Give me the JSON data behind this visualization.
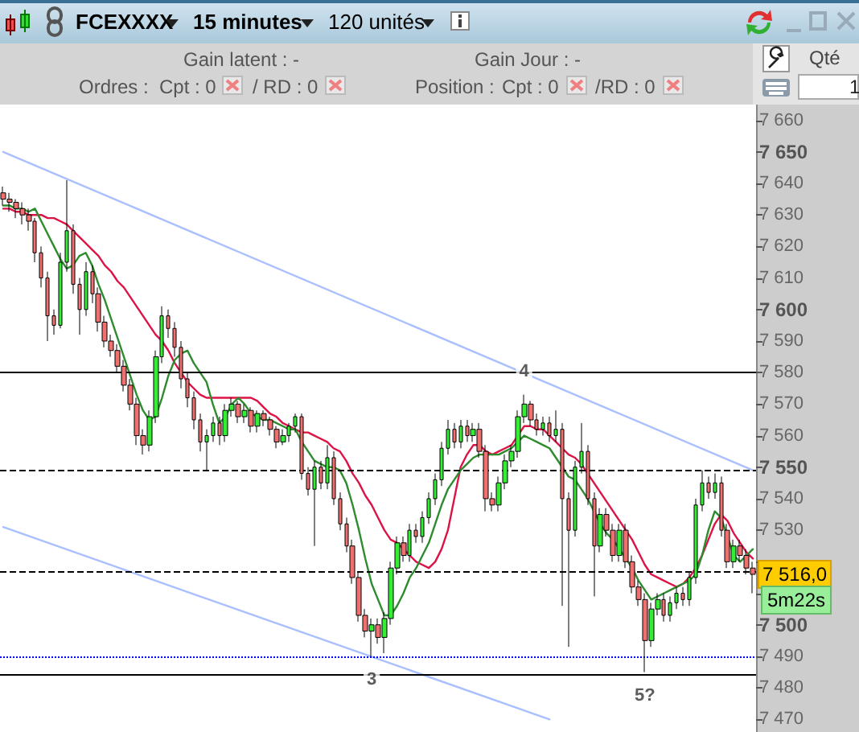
{
  "chart_data": {
    "type": "candlestick",
    "categories": [
      null,
      null,
      null,
      null,
      null,
      null,
      null,
      null,
      null,
      null,
      null,
      null,
      null,
      null,
      null,
      null,
      null,
      null,
      null,
      null,
      null,
      null,
      null,
      null,
      null,
      null,
      null,
      null,
      null,
      null,
      null,
      null,
      null,
      null,
      null,
      null,
      null,
      null,
      null,
      null,
      null,
      null,
      null,
      null,
      null,
      null,
      null,
      null,
      null,
      null,
      null,
      null,
      null,
      null,
      null,
      null,
      null,
      null,
      null,
      null,
      null,
      null,
      null,
      null,
      null,
      null,
      null,
      null,
      null,
      null,
      null,
      null,
      null,
      null,
      null,
      null,
      null,
      null,
      null,
      null,
      null,
      null,
      null,
      null,
      null,
      null,
      null,
      null,
      null,
      null,
      null,
      null,
      null,
      null,
      null,
      null,
      null,
      null,
      null,
      null,
      null,
      null,
      null,
      null,
      null,
      null,
      null,
      null,
      null,
      null,
      null,
      null,
      null,
      null,
      null,
      null,
      null,
      null,
      null
    ],
    "ohlc": [
      [
        7637,
        7639,
        7633,
        7635
      ],
      [
        7635,
        7637,
        7631,
        7634
      ],
      [
        7634,
        7635,
        7629,
        7632
      ],
      [
        7632,
        7634,
        7627,
        7630
      ],
      [
        7630,
        7632,
        7625,
        7628
      ],
      [
        7628,
        7629,
        7615,
        7618
      ],
      [
        7618,
        7620,
        7607,
        7610
      ],
      [
        7610,
        7612,
        7590,
        7598
      ],
      [
        7598,
        7600,
        7592,
        7595
      ],
      [
        7595,
        7618,
        7594,
        7615
      ],
      [
        7615,
        7641,
        7612,
        7625
      ],
      [
        7625,
        7627,
        7605,
        7608
      ],
      [
        7608,
        7610,
        7592,
        7600
      ],
      [
        7600,
        7615,
        7598,
        7612
      ],
      [
        7612,
        7614,
        7602,
        7605
      ],
      [
        7605,
        7607,
        7593,
        7596
      ],
      [
        7596,
        7598,
        7588,
        7590
      ],
      [
        7590,
        7592,
        7585,
        7587
      ],
      [
        7587,
        7589,
        7580,
        7582
      ],
      [
        7582,
        7584,
        7574,
        7576
      ],
      [
        7576,
        7578,
        7568,
        7570
      ],
      [
        7570,
        7572,
        7557,
        7560
      ],
      [
        7560,
        7562,
        7554,
        7557
      ],
      [
        7557,
        7568,
        7555,
        7566
      ],
      [
        7566,
        7587,
        7564,
        7585
      ],
      [
        7585,
        7601,
        7583,
        7598
      ],
      [
        7598,
        7600,
        7591,
        7594
      ],
      [
        7594,
        7596,
        7585,
        7588
      ],
      [
        7588,
        7590,
        7575,
        7578
      ],
      [
        7578,
        7580,
        7569,
        7572
      ],
      [
        7572,
        7574,
        7562,
        7565
      ],
      [
        7565,
        7567,
        7555,
        7558
      ],
      [
        7558,
        7562,
        7549,
        7560
      ],
      [
        7560,
        7566,
        7558,
        7564
      ],
      [
        7564,
        7566,
        7557,
        7560
      ],
      [
        7560,
        7570,
        7558,
        7568
      ],
      [
        7568,
        7572,
        7566,
        7570
      ],
      [
        7570,
        7571,
        7564,
        7566
      ],
      [
        7566,
        7570,
        7564,
        7568
      ],
      [
        7568,
        7569,
        7561,
        7563
      ],
      [
        7563,
        7568,
        7561,
        7567
      ],
      [
        7567,
        7568,
        7563,
        7565
      ],
      [
        7565,
        7566,
        7560,
        7562
      ],
      [
        7562,
        7563,
        7556,
        7558
      ],
      [
        7558,
        7562,
        7557,
        7560
      ],
      [
        7560,
        7564,
        7558,
        7563
      ],
      [
        7563,
        7567,
        7561,
        7566
      ],
      [
        7566,
        7567,
        7546,
        7548
      ],
      [
        7548,
        7550,
        7541,
        7543
      ],
      [
        7543,
        7552,
        7525,
        7550
      ],
      [
        7550,
        7552,
        7543,
        7545
      ],
      [
        7545,
        7557,
        7543,
        7553
      ],
      [
        7553,
        7555,
        7538,
        7540
      ],
      [
        7540,
        7542,
        7530,
        7532
      ],
      [
        7532,
        7534,
        7523,
        7525
      ],
      [
        7525,
        7527,
        7513,
        7515
      ],
      [
        7515,
        7517,
        7501,
        7503
      ],
      [
        7503,
        7505,
        7496,
        7498
      ],
      [
        7498,
        7502,
        7490,
        7500
      ],
      [
        7500,
        7502,
        7494,
        7496
      ],
      [
        7496,
        7504,
        7491,
        7502
      ],
      [
        7502,
        7520,
        7500,
        7518
      ],
      [
        7518,
        7528,
        7516,
        7526
      ],
      [
        7526,
        7528,
        7520,
        7522
      ],
      [
        7522,
        7532,
        7520,
        7530
      ],
      [
        7530,
        7532,
        7526,
        7528
      ],
      [
        7528,
        7536,
        7526,
        7534
      ],
      [
        7534,
        7542,
        7532,
        7540
      ],
      [
        7540,
        7548,
        7538,
        7546
      ],
      [
        7546,
        7558,
        7544,
        7556
      ],
      [
        7556,
        7565,
        7554,
        7562
      ],
      [
        7562,
        7564,
        7556,
        7558
      ],
      [
        7558,
        7565,
        7556,
        7563
      ],
      [
        7563,
        7565,
        7558,
        7560
      ],
      [
        7560,
        7564,
        7558,
        7562
      ],
      [
        7562,
        7564,
        7553,
        7555
      ],
      [
        7555,
        7557,
        7536,
        7540
      ],
      [
        7540,
        7542,
        7536,
        7538
      ],
      [
        7538,
        7547,
        7536,
        7545
      ],
      [
        7545,
        7554,
        7543,
        7552
      ],
      [
        7552,
        7557,
        7550,
        7555
      ],
      [
        7555,
        7568,
        7553,
        7566
      ],
      [
        7566,
        7573,
        7564,
        7570
      ],
      [
        7570,
        7571,
        7563,
        7565
      ],
      [
        7565,
        7567,
        7560,
        7562
      ],
      [
        7562,
        7566,
        7560,
        7564
      ],
      [
        7564,
        7566,
        7558,
        7560
      ],
      [
        7560,
        7568,
        7558,
        7562
      ],
      [
        7562,
        7564,
        7506,
        7540
      ],
      [
        7540,
        7542,
        7493,
        7530
      ],
      [
        7530,
        7552,
        7528,
        7550
      ],
      [
        7550,
        7564,
        7548,
        7555
      ],
      [
        7555,
        7557,
        7538,
        7540
      ],
      [
        7540,
        7542,
        7509,
        7525
      ],
      [
        7525,
        7537,
        7523,
        7535
      ],
      [
        7535,
        7537,
        7528,
        7530
      ],
      [
        7530,
        7532,
        7520,
        7522
      ],
      [
        7522,
        7532,
        7520,
        7530
      ],
      [
        7530,
        7532,
        7518,
        7520
      ],
      [
        7520,
        7522,
        7510,
        7512
      ],
      [
        7512,
        7514,
        7506,
        7508
      ],
      [
        7508,
        7510,
        7485,
        7495
      ],
      [
        7495,
        7507,
        7493,
        7505
      ],
      [
        7505,
        7510,
        7503,
        7508
      ],
      [
        7508,
        7510,
        7501,
        7503
      ],
      [
        7503,
        7509,
        7501,
        7507
      ],
      [
        7507,
        7512,
        7505,
        7510
      ],
      [
        7510,
        7512,
        7506,
        7508
      ],
      [
        7508,
        7517,
        7506,
        7515
      ],
      [
        7515,
        7540,
        7513,
        7538
      ],
      [
        7538,
        7549,
        7536,
        7545
      ],
      [
        7545,
        7547,
        7540,
        7542
      ],
      [
        7542,
        7548,
        7540,
        7545
      ],
      [
        7545,
        7547,
        7528,
        7530
      ],
      [
        7530,
        7532,
        7518,
        7520
      ],
      [
        7520,
        7527,
        7518,
        7525
      ],
      [
        7525,
        7527,
        7520,
        7522
      ],
      [
        7522,
        7524,
        7516,
        7518
      ],
      [
        7518,
        7520,
        7510,
        7516
      ]
    ],
    "colors": [
      "#f07070",
      "#f07070",
      "#f07070",
      "#f07070",
      "#f07070",
      "#f07070",
      "#f07070",
      "#f07070",
      "#f07070",
      "#33ee33",
      "#33ee33",
      "#f07070",
      "#f07070",
      "#33ee33",
      "#f07070",
      "#f07070",
      "#f07070",
      "#f07070",
      "#f07070",
      "#f07070",
      "#f07070",
      "#f07070",
      "#f07070",
      "#33ee33",
      "#33ee33",
      "#33ee33",
      "#f07070",
      "#f07070",
      "#f07070",
      "#f07070",
      "#f07070",
      "#f07070",
      "#33ee33",
      "#33ee33",
      "#f07070",
      "#33ee33",
      "#33ee33",
      "#f07070",
      "#33ee33",
      "#f07070",
      "#33ee33",
      "#f07070",
      "#f07070",
      "#f07070",
      "#33ee33",
      "#33ee33",
      "#33ee33",
      "#f07070",
      "#f07070",
      "#33ee33",
      "#f07070",
      "#33ee33",
      "#f07070",
      "#f07070",
      "#f07070",
      "#f07070",
      "#f07070",
      "#f07070",
      "#33ee33",
      "#f07070",
      "#33ee33",
      "#33ee33",
      "#33ee33",
      "#f07070",
      "#33ee33",
      "#f07070",
      "#33ee33",
      "#33ee33",
      "#33ee33",
      "#33ee33",
      "#33ee33",
      "#f07070",
      "#33ee33",
      "#f07070",
      "#33ee33",
      "#f07070",
      "#f07070",
      "#f07070",
      "#33ee33",
      "#33ee33",
      "#33ee33",
      "#33ee33",
      "#33ee33",
      "#f07070",
      "#f07070",
      "#33ee33",
      "#f07070",
      "#33ee33",
      "#f07070",
      "#f07070",
      "#33ee33",
      "#33ee33",
      "#f07070",
      "#f07070",
      "#33ee33",
      "#f07070",
      "#f07070",
      "#33ee33",
      "#f07070",
      "#f07070",
      "#f07070",
      "#f07070",
      "#33ee33",
      "#33ee33",
      "#f07070",
      "#33ee33",
      "#33ee33",
      "#f07070",
      "#33ee33",
      "#33ee33",
      "#33ee33",
      "#f07070",
      "#33ee33",
      "#f07070",
      "#f07070",
      "#33ee33",
      "#f07070",
      "#f07070",
      "#f07070"
    ],
    "value_labels": [
      null,
      null,
      null,
      null,
      null,
      null,
      null,
      null,
      null,
      null,
      null,
      null,
      null,
      null,
      null,
      null,
      null,
      null,
      null,
      null,
      null,
      null,
      null,
      null,
      null,
      null,
      null,
      null,
      null,
      null,
      null,
      null,
      null,
      null,
      null,
      null,
      null,
      null,
      null,
      null,
      null,
      null,
      null,
      null,
      null,
      null,
      null,
      null,
      null,
      null,
      null,
      null,
      null,
      null,
      null,
      null,
      null,
      null,
      "3",
      null,
      null,
      null,
      null,
      null,
      null,
      null,
      null,
      null,
      null,
      null,
      null,
      null,
      null,
      null,
      null,
      null,
      null,
      null,
      null,
      null,
      null,
      null,
      "4",
      null,
      null,
      null,
      null,
      null,
      null,
      null,
      null,
      null,
      null,
      null,
      null,
      null,
      null,
      null,
      null,
      null,
      null,
      "5?",
      null,
      null,
      null,
      null,
      null,
      null,
      null,
      null,
      null,
      null,
      null,
      null,
      null,
      null,
      null,
      null,
      null
    ],
    "series": [
      {
        "type": "line",
        "color": "#dc1446",
        "values": [
          7632,
          7632,
          7631,
          7631,
          7630,
          7630,
          7630,
          7629,
          7629,
          7628,
          7627,
          7625,
          7623,
          7621,
          7619,
          7617,
          7614,
          7612,
          7609,
          7607,
          7604,
          7601,
          7598,
          7595,
          7592,
          7590,
          7587,
          7583,
          7580,
          7577,
          7575,
          7573,
          7572,
          7572,
          7572,
          7572,
          7572,
          7572,
          7572,
          7572,
          7571,
          7569,
          7567,
          7566,
          7564,
          7563,
          7562,
          7561,
          7561,
          7560,
          7559,
          7558,
          7556,
          7555,
          7552,
          7548,
          7545,
          7541,
          7538,
          7534,
          7530,
          7527,
          7526,
          7524,
          7522,
          7520,
          7519,
          7518,
          7520,
          7524,
          7530,
          7540,
          7550,
          7554,
          7557,
          7557,
          7555,
          7554,
          7555,
          7556,
          7557,
          7560,
          7563,
          7563,
          7562,
          7562,
          7560,
          7558,
          7556,
          7554,
          7553,
          7551,
          7548,
          7545,
          7542,
          7539,
          7536,
          7533,
          7530,
          7527,
          7523,
          7519,
          7516,
          7515,
          7514,
          7513,
          7512,
          7513,
          7515,
          7518,
          7522,
          7527,
          7532,
          7535,
          7533,
          7529,
          7526,
          7523,
          7521
        ]
      },
      {
        "type": "line",
        "color": "#2e8b2e",
        "values": [
          7633,
          7633,
          7632,
          7632,
          7631,
          7632,
          7628,
          7624,
          7620,
          7616,
          7613,
          7614,
          7617,
          7618,
          7614,
          7608,
          7603,
          7597,
          7591,
          7585,
          7579,
          7573,
          7568,
          7565,
          7566,
          7572,
          7579,
          7584,
          7586,
          7587,
          7583,
          7580,
          7577,
          7570,
          7564,
          7566,
          7570,
          7572,
          7570,
          7567,
          7566,
          7565,
          7565,
          7564,
          7563,
          7562,
          7562,
          7558,
          7555,
          7552,
          7551,
          7550,
          7550,
          7549,
          7545,
          7538,
          7530,
          7521,
          7513,
          7508,
          7503,
          7503,
          7506,
          7510,
          7515,
          7518,
          7522,
          7526,
          7532,
          7538,
          7543,
          7546,
          7549,
          7551,
          7553,
          7554,
          7554,
          7554,
          7554,
          7555,
          7556,
          7558,
          7560,
          7559,
          7558,
          7557,
          7556,
          7553,
          7550,
          7547,
          7546,
          7543,
          7540,
          7536,
          7532,
          7529,
          7527,
          7524,
          7521,
          7518,
          7514,
          7511,
          7508,
          7509,
          7510,
          7511,
          7512,
          7513,
          7514,
          7516,
          7522,
          7530,
          7536,
          7534,
          7528,
          7522,
          7520,
          7522,
          7524
        ]
      },
      {
        "type": "line",
        "color": "#aabfff",
        "values": [
          7650,
          null,
          null,
          null,
          null,
          null,
          null,
          null,
          null,
          null,
          null,
          null,
          null,
          null,
          null,
          null,
          null,
          null,
          null,
          null,
          null,
          null,
          null,
          null,
          null,
          null,
          null,
          null,
          null,
          null,
          null,
          null,
          null,
          null,
          null,
          null,
          null,
          null,
          null,
          null,
          null,
          null,
          null,
          null,
          null,
          null,
          null,
          null,
          null,
          null,
          null,
          null,
          null,
          null,
          null,
          null,
          null,
          null,
          null,
          null,
          null,
          null,
          null,
          null,
          null,
          null,
          null,
          null,
          null,
          null,
          null,
          null,
          null,
          null,
          null,
          null,
          null,
          null,
          null,
          null,
          null,
          null,
          null,
          null,
          null,
          null,
          null,
          null,
          null,
          null,
          null,
          null,
          null,
          null,
          null,
          null,
          null,
          null,
          null,
          null,
          null,
          null,
          null,
          null,
          null,
          null,
          null,
          null,
          null,
          null,
          null,
          null,
          null,
          null,
          null,
          null,
          null,
          null,
          7549
        ]
      },
      {
        "type": "line",
        "color": "#aabfff",
        "values": [
          7531,
          null,
          null,
          null,
          null,
          null,
          null,
          null,
          null,
          null,
          null,
          null,
          null,
          null,
          null,
          null,
          null,
          null,
          null,
          null,
          null,
          null,
          null,
          null,
          null,
          null,
          null,
          null,
          null,
          null,
          null,
          null,
          null,
          null,
          null,
          null,
          null,
          null,
          null,
          null,
          null,
          null,
          null,
          null,
          null,
          null,
          null,
          null,
          null,
          null,
          null,
          null,
          null,
          null,
          null,
          null,
          null,
          null,
          null,
          null,
          null,
          null,
          null,
          null,
          null,
          null,
          null,
          null,
          null,
          null,
          null,
          null,
          null,
          null,
          null,
          null,
          null,
          null,
          null,
          null,
          null,
          null,
          null,
          null,
          null,
          null,
          7470,
          null,
          null,
          null,
          null,
          null,
          null,
          null,
          null,
          null,
          null,
          null,
          null,
          null,
          null,
          null,
          null,
          null,
          null,
          null,
          null,
          null,
          null,
          null,
          null,
          null,
          null,
          null,
          null,
          null,
          null,
          null,
          null
        ]
      }
    ],
    "ylim": [
      7466,
      7665
    ],
    "yticks": [
      {
        "value": 7470,
        "label": "7 470"
      },
      {
        "value": 7480,
        "label": "7 480"
      },
      {
        "value": 7490,
        "label": "7 490"
      },
      {
        "value": 7500,
        "label": "7 500"
      },
      {
        "value": 7510,
        "label": null
      },
      {
        "value": 7520,
        "label": null
      },
      {
        "value": 7530,
        "label": "7 530"
      },
      {
        "value": 7540,
        "label": "7 540"
      },
      {
        "value": 7550,
        "label": "7 550"
      },
      {
        "value": 7560,
        "label": "7 560"
      },
      {
        "value": 7570,
        "label": "7 570"
      },
      {
        "value": 7580,
        "label": "7 580"
      },
      {
        "value": 7590,
        "label": "7 590"
      },
      {
        "value": 7600,
        "label": "7 600"
      },
      {
        "value": 7610,
        "label": "7 610"
      },
      {
        "value": 7620,
        "label": "7 620"
      },
      {
        "value": 7630,
        "label": "7 630"
      },
      {
        "value": 7640,
        "label": "7 640"
      },
      {
        "value": 7650,
        "label": "7 650"
      },
      {
        "value": 7660,
        "label": "7 660"
      }
    ],
    "tick_labels": "y",
    "ref_lines": [
      {
        "axis": "y",
        "value": 7490,
        "color": "#0000ff",
        "line_style": "dotted"
      },
      {
        "axis": "y",
        "value": 7549,
        "color": "#000000",
        "line_style": "dashed"
      },
      {
        "axis": "y",
        "value": 7517,
        "color": "#000000",
        "line_style": "dashed"
      },
      {
        "axis": "y",
        "value": 7580,
        "color": "#000000",
        "line_style": "solid"
      },
      {
        "axis": "y",
        "value": 7484,
        "color": "#000000",
        "line_style": "solid"
      }
    ],
    "annotations": [
      "FCEXXXX",
      "15 minutes",
      "120 unités",
      "Gain latent : -",
      "Gain Jour : -",
      "Ordres :",
      "Cpt : 0",
      "/ RD : 0",
      "Position :",
      "Cpt : 0",
      "/RD : 0",
      "Qté",
      "1",
      "7 516,0",
      "5m22s"
    ]
  }
}
